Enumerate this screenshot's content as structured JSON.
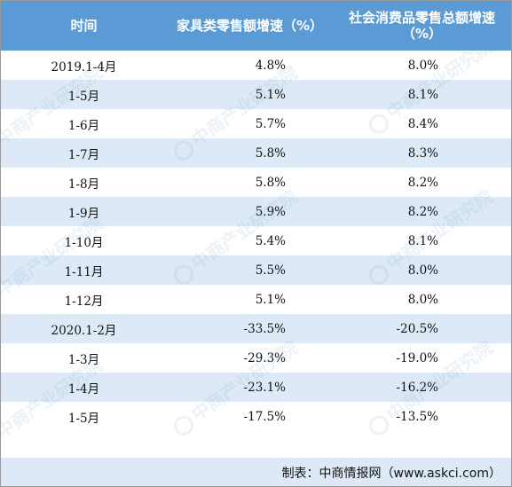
{
  "table": {
    "headers": [
      "时间",
      "家具类零售额增速（%）",
      "社会消费品零售总额增速（%）"
    ],
    "rows": [
      [
        "2019.1-4月",
        "4.8%",
        "8.0%"
      ],
      [
        "1-5月",
        "5.1%",
        "8.1%"
      ],
      [
        "1-6月",
        "5.7%",
        "8.4%"
      ],
      [
        "1-7月",
        "5.8%",
        "8.3%"
      ],
      [
        "1-8月",
        "5.8%",
        "8.2%"
      ],
      [
        "1-9月",
        "5.9%",
        "8.2%"
      ],
      [
        "1-10月",
        "5.4%",
        "8.1%"
      ],
      [
        "1-11月",
        "5.5%",
        "8.0%"
      ],
      [
        "1-12月",
        "5.1%",
        "8.0%"
      ],
      [
        "2020.1-2月",
        "-33.5%",
        "-20.5%"
      ],
      [
        "1-3月",
        "-29.3%",
        "-19.0%"
      ],
      [
        "1-4月",
        "-23.1%",
        "-16.2%"
      ],
      [
        "1-5月",
        "-17.5%",
        "-13.5%"
      ]
    ]
  },
  "source": "制表：中商情报网（www.askci.com）",
  "watermark": "中商产业研究院",
  "colors": {
    "header_bg": "#5b9bd5",
    "stripe_bg": "#dde9f6",
    "row_bg": "#ffffff"
  }
}
